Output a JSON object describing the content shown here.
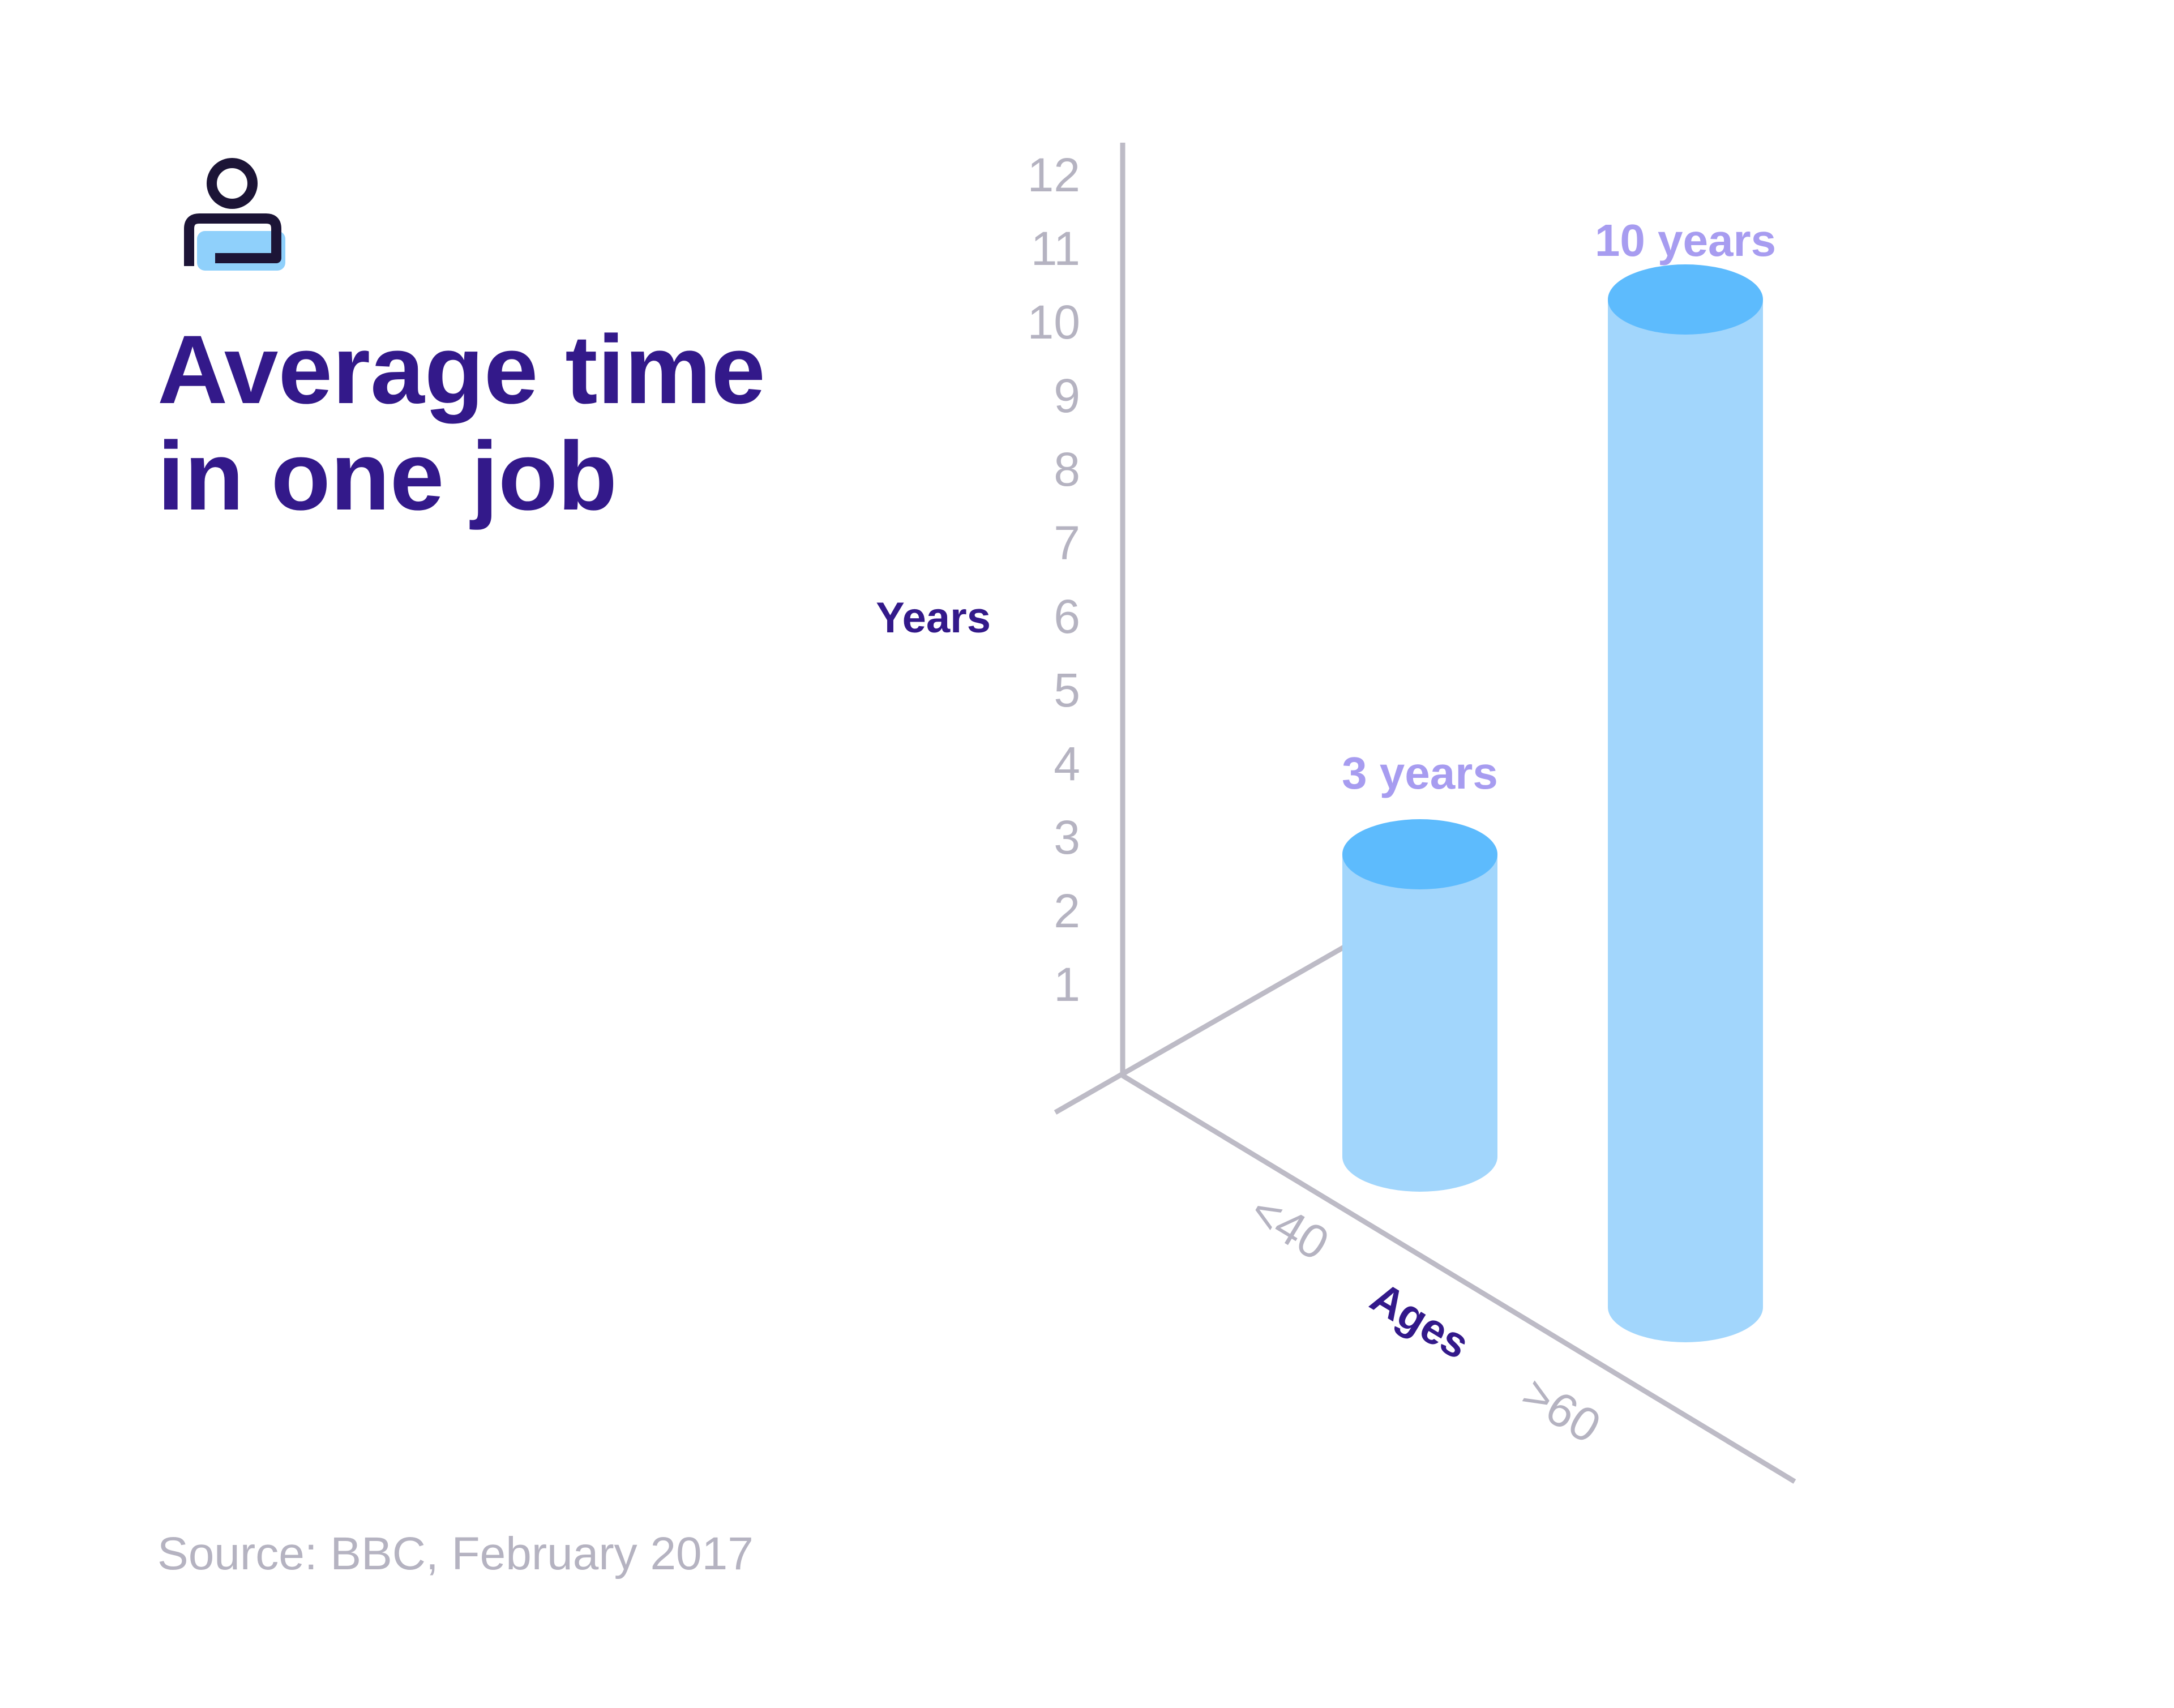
{
  "title_lines": [
    "Average time",
    "in one job"
  ],
  "source": "Source: BBC, February 2017",
  "icon": "person-at-laptop-icon",
  "colors": {
    "title": "#33198a",
    "axis": "#bdbbc6",
    "tick": "#b5b3c1",
    "axis_title": "#33198a",
    "bar_label": "#a79cf0",
    "cylinder_body": "#a2d6fc",
    "cylinder_top": "#5dbbfd",
    "icon_outline": "#1c1436",
    "icon_fill": "#8fd0fb"
  },
  "chart_data": {
    "type": "bar",
    "style": "3d-cylinder",
    "xlabel": "Ages",
    "ylabel": "Years",
    "categories": [
      "<40",
      ">60"
    ],
    "values": [
      3,
      10
    ],
    "data_labels": [
      "3 years",
      "10 years"
    ],
    "yticks": [
      "1",
      "2",
      "3",
      "4",
      "5",
      "6",
      "7",
      "8",
      "9",
      "10",
      "11",
      "12"
    ],
    "ylim": [
      0,
      12.4
    ],
    "grid": false,
    "legend": "none"
  }
}
